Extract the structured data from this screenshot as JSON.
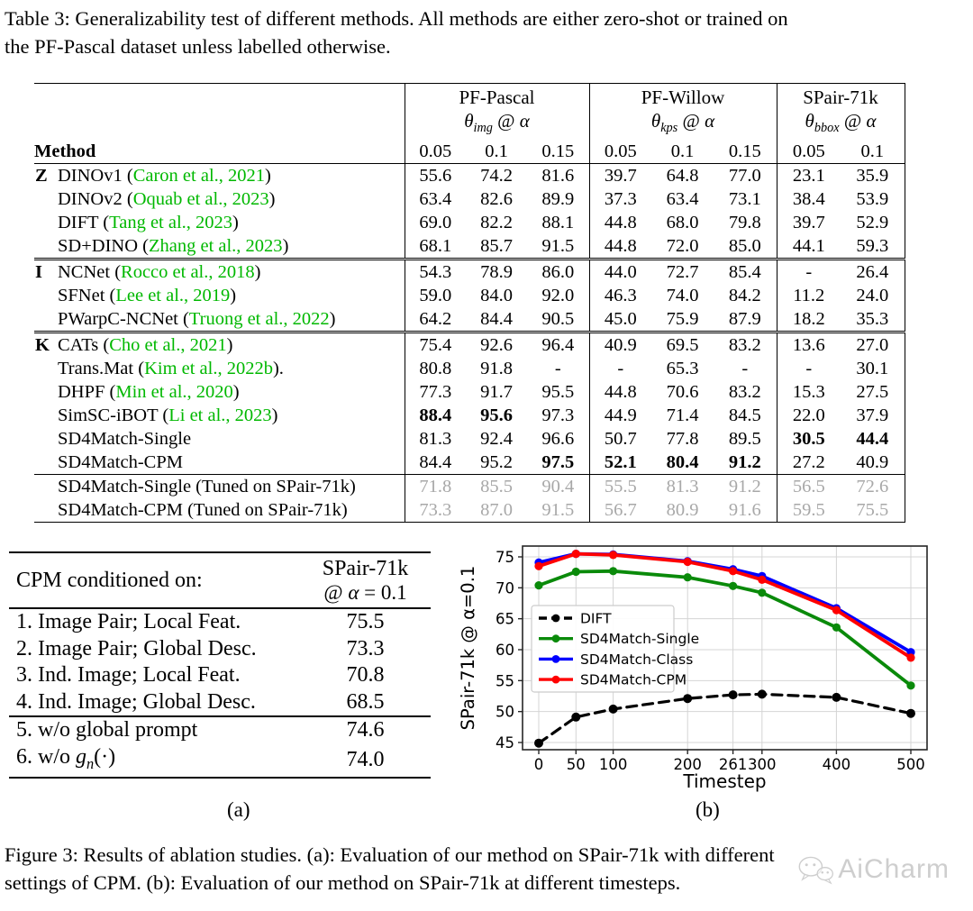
{
  "page": {
    "table_caption_lines": [
      "Table 3: Generalizability test of different methods.  All methods are either zero-shot or trained on",
      "the PF-Pascal dataset unless labelled otherwise."
    ],
    "figure_caption_lines": [
      "Figure 3:  Results of ablation studies.  (a):  Evaluation of our method on SPair-71k with different",
      "settings of CPM. (b): Evaluation of our method on SPair-71k at different timesteps."
    ],
    "label_a": "(a)",
    "label_b": "(b)"
  },
  "table3": {
    "method_header": "Method",
    "groups": [
      {
        "name": "PF-Pascal",
        "metric": {
          "symbol": "θ",
          "sub": "img",
          "at": " @ ",
          "alpha": "α"
        },
        "alphas": [
          "0.05",
          "0.1",
          "0.15"
        ]
      },
      {
        "name": "PF-Willow",
        "metric": {
          "symbol": "θ",
          "sub": "kps",
          "at": " @ ",
          "alpha": "α"
        },
        "alphas": [
          "0.05",
          "0.1",
          "0.15"
        ]
      },
      {
        "name": "SPair-71k",
        "metric": {
          "symbol": "θ",
          "sub": "bbox",
          "at": " @ ",
          "alpha": "α"
        },
        "alphas": [
          "0.05",
          "0.1"
        ]
      }
    ],
    "sections": [
      {
        "rule_before": "none",
        "gray": false,
        "rows": [
          {
            "group": "Z",
            "text": "DINOv1 (",
            "cite": "Caron et al., 2021",
            "end": ")",
            "values": [
              "55.6",
              "74.2",
              "81.6",
              "39.7",
              "64.8",
              "77.0",
              "23.1",
              "35.9"
            ],
            "bold": []
          },
          {
            "group": "",
            "text": "DINOv2 (",
            "cite": "Oquab et al., 2023",
            "end": ")",
            "values": [
              "63.4",
              "82.6",
              "89.9",
              "37.3",
              "63.4",
              "73.1",
              "38.4",
              "53.9"
            ],
            "bold": []
          },
          {
            "group": "",
            "text": "DIFT (",
            "cite": "Tang et al., 2023",
            "end": ")",
            "values": [
              "69.0",
              "82.2",
              "88.1",
              "44.8",
              "68.0",
              "79.8",
              "39.7",
              "52.9"
            ],
            "bold": []
          },
          {
            "group": "",
            "text": "SD+DINO (",
            "cite": "Zhang et al., 2023",
            "end": ")",
            "values": [
              "68.1",
              "85.7",
              "91.5",
              "44.8",
              "72.0",
              "85.0",
              "44.1",
              "59.3"
            ],
            "bold": []
          }
        ]
      },
      {
        "rule_before": "double",
        "gray": false,
        "rows": [
          {
            "group": "I",
            "text": "NCNet (",
            "cite": "Rocco et al., 2018",
            "end": ")",
            "values": [
              "54.3",
              "78.9",
              "86.0",
              "44.0",
              "72.7",
              "85.4",
              "-",
              "26.4"
            ],
            "bold": []
          },
          {
            "group": "",
            "text": "SFNet (",
            "cite": "Lee et al., 2019",
            "end": ")",
            "values": [
              "59.0",
              "84.0",
              "92.0",
              "46.3",
              "74.0",
              "84.2",
              "11.2",
              "24.0"
            ],
            "bold": []
          },
          {
            "group": "",
            "text": "PWarpC-NCNet (",
            "cite": "Truong et al., 2022",
            "end": ")",
            "values": [
              "64.2",
              "84.4",
              "90.5",
              "45.0",
              "75.9",
              "87.9",
              "18.2",
              "35.3"
            ],
            "bold": []
          }
        ]
      },
      {
        "rule_before": "double",
        "gray": false,
        "rows": [
          {
            "group": "K",
            "text": "CATs (",
            "cite": "Cho et al., 2021",
            "end": ")",
            "values": [
              "75.4",
              "92.6",
              "96.4",
              "40.9",
              "69.5",
              "83.2",
              "13.6",
              "27.0"
            ],
            "bold": []
          },
          {
            "group": "",
            "text": "Trans.Mat (",
            "cite": "Kim et al., 2022b",
            "end": ").",
            "values": [
              "80.8",
              "91.8",
              "-",
              "-",
              "65.3",
              "-",
              "-",
              "30.1"
            ],
            "bold": []
          },
          {
            "group": "",
            "text": "DHPF (",
            "cite": "Min et al., 2020",
            "end": ")",
            "values": [
              "77.3",
              "91.7",
              "95.5",
              "44.8",
              "70.6",
              "83.2",
              "15.3",
              "27.5"
            ],
            "bold": []
          },
          {
            "group": "",
            "text": "SimSC-iBOT (",
            "cite": "Li et al., 2023",
            "end": ")",
            "values": [
              "88.4",
              "95.6",
              "97.3",
              "44.9",
              "71.4",
              "84.5",
              "22.0",
              "37.9"
            ],
            "bold": [
              0,
              1
            ]
          },
          {
            "group": "",
            "text": "SD4Match-Single",
            "cite": null,
            "end": "",
            "values": [
              "81.3",
              "92.4",
              "96.6",
              "50.7",
              "77.8",
              "89.5",
              "30.5",
              "44.4"
            ],
            "bold": [
              6,
              7
            ]
          },
          {
            "group": "",
            "text": "SD4Match-CPM",
            "cite": null,
            "end": "",
            "values": [
              "84.4",
              "95.2",
              "97.5",
              "52.1",
              "80.4",
              "91.2",
              "27.2",
              "40.9"
            ],
            "bold": [
              2,
              3,
              4,
              5
            ]
          }
        ]
      },
      {
        "rule_before": "single",
        "gray": true,
        "rows": [
          {
            "group": "",
            "text": "SD4Match-Single (Tuned on SPair-71k)",
            "cite": null,
            "end": "",
            "values": [
              "71.8",
              "85.5",
              "90.4",
              "55.5",
              "81.3",
              "91.2",
              "56.5",
              "72.6"
            ],
            "bold": []
          },
          {
            "group": "",
            "text": "SD4Match-CPM (Tuned on SPair-71k)",
            "cite": null,
            "end": "",
            "values": [
              "73.3",
              "87.0",
              "91.5",
              "56.7",
              "80.9",
              "91.6",
              "59.5",
              "75.5"
            ],
            "bold": []
          }
        ]
      }
    ]
  },
  "table_a": {
    "header_label": "CPM conditioned on:",
    "header_col_line1": "SPair-71k",
    "header_at": "@ ",
    "header_alpha": "α",
    "header_eq": " = 0.1",
    "sections": [
      {
        "rows": [
          {
            "label": "1. Image Pair; Local Feat.",
            "value": "75.5"
          },
          {
            "label": "2. Image Pair; Global Desc.",
            "value": "73.3"
          },
          {
            "label": "3. Ind. Image; Local Feat.",
            "value": "70.8"
          },
          {
            "label": "4. Ind. Image; Global Desc.",
            "value": "68.5"
          }
        ]
      },
      {
        "rows": [
          {
            "label": "5. w/o global prompt",
            "value": "74.6"
          },
          {
            "label": "6. w/o ",
            "math_var": "g",
            "math_sub": "n",
            "math_end": "(·)",
            "value": "74.0"
          }
        ]
      }
    ]
  },
  "chart_data": {
    "type": "line",
    "xlabel": "Timestep",
    "ylabel": "SPair-71k @ α=0.1",
    "x_ticks": [
      0,
      50,
      100,
      200,
      261,
      300,
      400,
      500
    ],
    "y_ticks": [
      45,
      50,
      55,
      60,
      65,
      70,
      75
    ],
    "xlim": [
      -22,
      525
    ],
    "ylim": [
      43.8,
      76.7
    ],
    "grid": true,
    "legend_position": "center left",
    "x": [
      0,
      50,
      100,
      200,
      261,
      300,
      400,
      500
    ],
    "series": [
      {
        "name": "DIFT",
        "color": "#000000",
        "dashed": true,
        "values": [
          44.9,
          49.1,
          50.4,
          52.1,
          52.7,
          52.8,
          52.3,
          49.7
        ]
      },
      {
        "name": "SD4Match-Single",
        "color": "#0a8a0a",
        "dashed": false,
        "values": [
          70.4,
          72.6,
          72.7,
          71.7,
          70.3,
          69.2,
          63.6,
          54.2
        ]
      },
      {
        "name": "SD4Match-Class",
        "color": "#0000ff",
        "dashed": false,
        "values": [
          74.1,
          75.5,
          75.4,
          74.3,
          73.0,
          71.9,
          66.7,
          59.6
        ]
      },
      {
        "name": "SD4Match-CPM",
        "color": "#ff0000",
        "dashed": false,
        "values": [
          73.5,
          75.5,
          75.3,
          74.2,
          72.7,
          71.3,
          66.4,
          58.7
        ]
      }
    ]
  },
  "watermark": {
    "text": "AiCharm"
  }
}
